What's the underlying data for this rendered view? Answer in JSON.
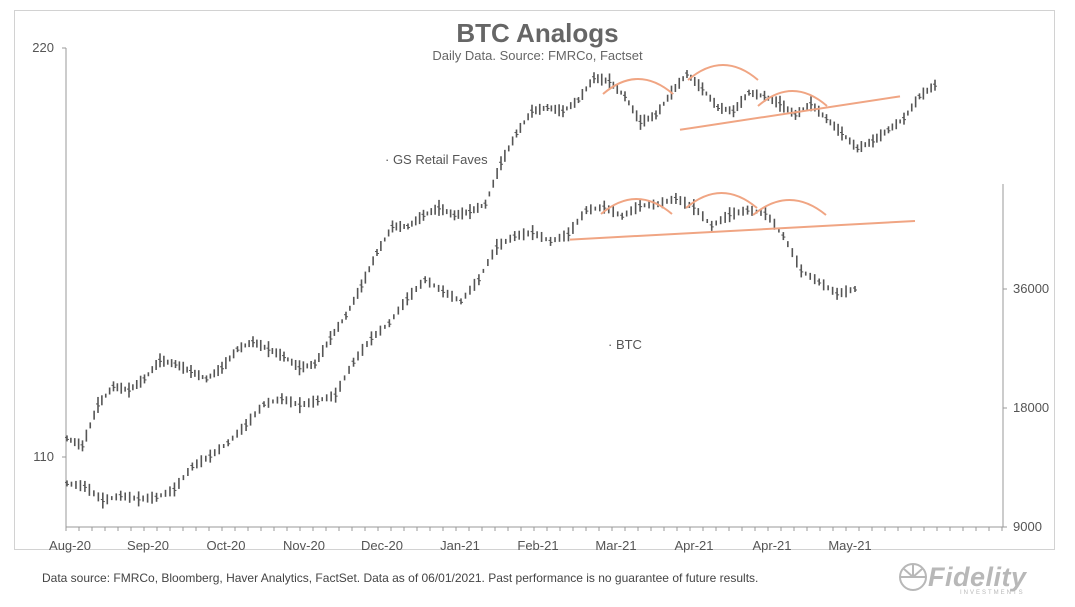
{
  "chart_data": {
    "type": "line",
    "style": "ohlc-bars",
    "title": "BTC Analogs",
    "subtitle": "Daily Data. Source: FMRCo, Factset",
    "x_ticks": [
      "Aug-20",
      "Sep-20",
      "Oct-20",
      "Nov-20",
      "Dec-20",
      "Jan-21",
      "Feb-21",
      "Mar-21",
      "Apr-21",
      "Apr-21",
      "May-21"
    ],
    "left_axis": {
      "ticks": [
        110,
        220
      ],
      "series": "GS Retail Faves"
    },
    "right_axis": {
      "scale": "log",
      "ticks": [
        9000,
        18000,
        36000
      ],
      "series": "BTC"
    },
    "series": [
      {
        "name": "GS Retail Faves",
        "axis": "left",
        "color": "#555555",
        "points": [
          [
            "Aug-20",
            115
          ],
          [
            "Aug-20",
            113
          ],
          [
            "Sep-20",
            124
          ],
          [
            "Sep-20",
            129
          ],
          [
            "Sep-20",
            128
          ],
          [
            "Sep-20",
            131
          ],
          [
            "Sep-20",
            136
          ],
          [
            "Oct-20",
            135
          ],
          [
            "Oct-20",
            133
          ],
          [
            "Oct-20",
            131
          ],
          [
            "Oct-20",
            134
          ],
          [
            "Nov-20",
            139
          ],
          [
            "Nov-20",
            141
          ],
          [
            "Nov-20",
            139
          ],
          [
            "Nov-20",
            137
          ],
          [
            "Nov-20",
            134
          ],
          [
            "Nov-20",
            135
          ],
          [
            "Dec-20",
            142
          ],
          [
            "Dec-20",
            148
          ],
          [
            "Dec-20",
            156
          ],
          [
            "Dec-20",
            165
          ],
          [
            "Dec-20",
            172
          ],
          [
            "Jan-21",
            172
          ],
          [
            "Jan-21",
            175
          ],
          [
            "Jan-21",
            177
          ],
          [
            "Jan-21",
            175
          ],
          [
            "Jan-21",
            176
          ],
          [
            "Feb-21",
            178
          ],
          [
            "Feb-21",
            189
          ],
          [
            "Feb-21",
            197
          ],
          [
            "Feb-21",
            203
          ],
          [
            "Feb-21",
            204
          ],
          [
            "Mar-21",
            203
          ],
          [
            "Mar-21",
            206
          ],
          [
            "Mar-21",
            212
          ],
          [
            "Mar-21",
            211
          ],
          [
            "Mar-21",
            207
          ],
          [
            "Mar-21",
            200
          ],
          [
            "Apr-21",
            202
          ],
          [
            "Apr-21",
            208
          ],
          [
            "Apr-21",
            213
          ],
          [
            "Apr-21",
            209
          ],
          [
            "Apr-21",
            204
          ],
          [
            "Apr-21",
            203
          ],
          [
            "Apr-21",
            208
          ],
          [
            "Apr-21",
            207
          ],
          [
            "Apr-21",
            205
          ],
          [
            "May-21",
            202
          ],
          [
            "May-21",
            205
          ],
          [
            "May-21",
            201
          ],
          [
            "May-21",
            197
          ],
          [
            "May-21",
            193
          ],
          [
            "May-21",
            195
          ],
          [
            "May-21",
            198
          ],
          [
            "May-21",
            201
          ],
          [
            "May-21",
            207
          ],
          [
            "May-21",
            210
          ]
        ],
        "label": "GS Retail Faves"
      },
      {
        "name": "BTC",
        "axis": "right",
        "color": "#555555",
        "points": [
          [
            "Aug-20",
            11600
          ],
          [
            "Aug-20",
            11400
          ],
          [
            "Sep-20",
            10500
          ],
          [
            "Sep-20",
            10800
          ],
          [
            "Sep-20",
            10600
          ],
          [
            "Oct-20",
            10700
          ],
          [
            "Oct-20",
            11200
          ],
          [
            "Oct-20",
            12800
          ],
          [
            "Oct-20",
            13600
          ],
          [
            "Nov-20",
            14700
          ],
          [
            "Nov-20",
            16300
          ],
          [
            "Nov-20",
            18400
          ],
          [
            "Nov-20",
            19000
          ],
          [
            "Nov-20",
            18300
          ],
          [
            "Dec-20",
            18800
          ],
          [
            "Dec-20",
            19400
          ],
          [
            "Dec-20",
            23500
          ],
          [
            "Dec-20",
            27000
          ],
          [
            "Jan-21",
            29500
          ],
          [
            "Jan-21",
            34000
          ],
          [
            "Jan-21",
            38000
          ],
          [
            "Jan-21",
            35500
          ],
          [
            "Jan-21",
            33500
          ],
          [
            "Feb-21",
            38000
          ],
          [
            "Feb-21",
            46000
          ],
          [
            "Feb-21",
            49000
          ],
          [
            "Feb-21",
            50000
          ],
          [
            "Feb-21",
            47500
          ],
          [
            "Mar-21",
            49500
          ],
          [
            "Mar-21",
            57000
          ],
          [
            "Mar-21",
            58000
          ],
          [
            "Mar-21",
            55000
          ],
          [
            "Apr-21",
            58500
          ],
          [
            "Apr-21",
            59000
          ],
          [
            "Apr-21",
            61000
          ],
          [
            "Apr-21",
            58000
          ],
          [
            "Apr-21",
            52000
          ],
          [
            "Apr-21",
            55500
          ],
          [
            "Apr-21",
            57000
          ],
          [
            "May-21",
            56000
          ],
          [
            "May-21",
            49000
          ],
          [
            "May-21",
            40000
          ],
          [
            "May-21",
            37500
          ],
          [
            "May-21",
            35000
          ],
          [
            "May-21",
            36000
          ]
        ],
        "label": "BTC"
      },
      {
        "name": "GS Retail Faves neckline",
        "axis": "left",
        "color": "#f0a583",
        "points": [
          [
            "Apr-21",
            198
          ],
          [
            "May-21",
            207
          ]
        ]
      },
      {
        "name": "BTC neckline",
        "axis": "right",
        "color": "#f0a583",
        "points": [
          [
            "Mar-21",
            48000
          ],
          [
            "May-21",
            53500
          ]
        ]
      }
    ],
    "annotations": [
      {
        "text": "GS Retail Faves",
        "target": "GS Retail Faves"
      },
      {
        "text": "BTC",
        "target": "BTC"
      },
      {
        "type": "arc",
        "count": 3,
        "target": "GS Retail Faves",
        "color": "#f0a583"
      },
      {
        "type": "arc",
        "count": 3,
        "target": "BTC",
        "color": "#f0a583"
      }
    ],
    "grid": false,
    "legend": "none"
  },
  "footer": {
    "note": "Data source: FMRCo, Bloomberg, Haver Analytics, FactSet. Data as of 06/01/2021. Past performance is no guarantee of future results."
  },
  "logo": {
    "name": "Fidelity",
    "tagline": "INVESTMENTS",
    "icon": "fidelity-logo-icon",
    "color": "#b8b8b8"
  },
  "colors": {
    "bars": "#555555",
    "annotation": "#f0a583",
    "axis": "#999999",
    "text": "#555555"
  }
}
